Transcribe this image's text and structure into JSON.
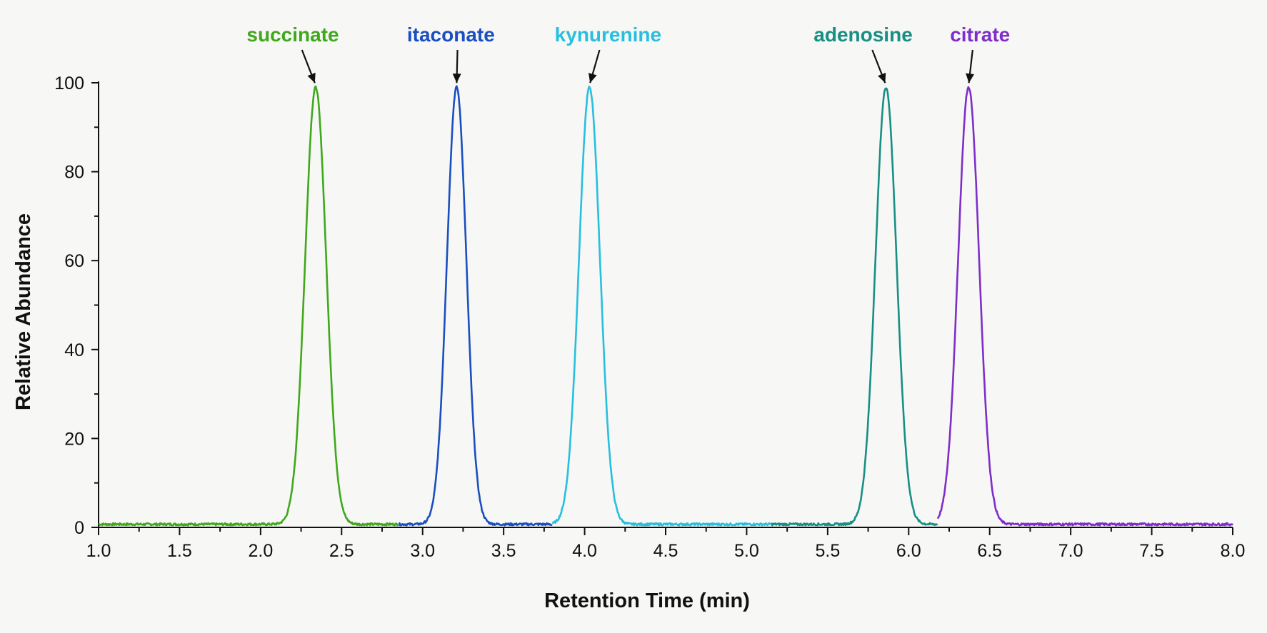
{
  "chart_data": {
    "type": "line",
    "xlabel": "Retention Time (min)",
    "ylabel": "Relative Abundance",
    "xlim": [
      1.0,
      8.0
    ],
    "ylim": [
      0,
      100
    ],
    "x_ticks": [
      "1.0",
      "1.5",
      "2.0",
      "2.5",
      "3.0",
      "3.5",
      "4.0",
      "4.5",
      "5.0",
      "5.5",
      "6.0",
      "6.5",
      "7.0",
      "7.5",
      "8.0"
    ],
    "y_ticks": [
      "0",
      "20",
      "40",
      "60",
      "80",
      "100"
    ],
    "baseline": 0.7,
    "grid": false,
    "legend": "none",
    "series": [
      {
        "name": "succinate",
        "peak_rt": 2.34,
        "peak_height": 99,
        "sigma": 0.065,
        "x_range": [
          1.0,
          2.85
        ],
        "color": "#3fa81c"
      },
      {
        "name": "itaconate",
        "peak_rt": 3.21,
        "peak_height": 99,
        "sigma": 0.06,
        "x_range": [
          2.85,
          3.8
        ],
        "color": "#1a4fbf"
      },
      {
        "name": "kynurenine",
        "peak_rt": 4.03,
        "peak_height": 99,
        "sigma": 0.065,
        "x_range": [
          3.8,
          5.15
        ],
        "color": "#27bfe0"
      },
      {
        "name": "adenosine",
        "peak_rt": 5.86,
        "peak_height": 99,
        "sigma": 0.065,
        "x_range": [
          5.15,
          6.18
        ],
        "color": "#178f84"
      },
      {
        "name": "citrate",
        "peak_rt": 6.37,
        "peak_height": 99,
        "sigma": 0.065,
        "x_range": [
          6.18,
          8.0
        ],
        "color": "#7e2ec9"
      }
    ]
  }
}
